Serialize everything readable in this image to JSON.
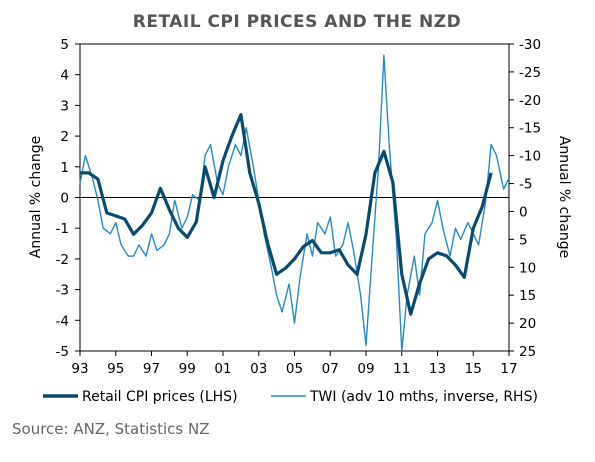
{
  "chart_data": {
    "type": "line",
    "title": "RETAIL CPI PRICES AND THE NZD",
    "y_left_label": "Annual % change",
    "y_right_label": "Annual % change",
    "y_left_range": [
      -5,
      5
    ],
    "y_left_ticks": [
      "5",
      "4",
      "3",
      "2",
      "1",
      "0",
      "-1",
      "-2",
      "-3",
      "-4",
      "-5"
    ],
    "y_right_range": [
      25,
      -30
    ],
    "y_right_ticks": [
      "-30",
      "-25",
      "-20",
      "-15",
      "-10",
      "-5",
      "0",
      "5",
      "10",
      "15",
      "20",
      "25"
    ],
    "x_range": [
      1993,
      2017
    ],
    "x_ticks": [
      "93",
      "95",
      "97",
      "99",
      "01",
      "03",
      "05",
      "07",
      "09",
      "11",
      "13",
      "15",
      "17"
    ],
    "zero_line": true,
    "series": [
      {
        "name": "Retail CPI prices (LHS)",
        "axis": "left",
        "color": "#0b4a6f",
        "points": [
          [
            1993.0,
            0.8
          ],
          [
            1993.5,
            0.8
          ],
          [
            1994.0,
            0.6
          ],
          [
            1994.5,
            -0.5
          ],
          [
            1995.0,
            -0.6
          ],
          [
            1995.5,
            -0.7
          ],
          [
            1996.0,
            -1.2
          ],
          [
            1996.5,
            -0.9
          ],
          [
            1997.0,
            -0.5
          ],
          [
            1997.5,
            0.3
          ],
          [
            1998.0,
            -0.4
          ],
          [
            1998.5,
            -1.0
          ],
          [
            1999.0,
            -1.3
          ],
          [
            1999.5,
            -0.8
          ],
          [
            2000.0,
            1.0
          ],
          [
            2000.5,
            0.0
          ],
          [
            2001.0,
            1.2
          ],
          [
            2001.5,
            2.0
          ],
          [
            2002.0,
            2.7
          ],
          [
            2002.5,
            0.8
          ],
          [
            2003.0,
            -0.2
          ],
          [
            2003.5,
            -1.5
          ],
          [
            2004.0,
            -2.5
          ],
          [
            2004.5,
            -2.3
          ],
          [
            2005.0,
            -2.0
          ],
          [
            2005.5,
            -1.6
          ],
          [
            2006.0,
            -1.4
          ],
          [
            2006.5,
            -1.8
          ],
          [
            2007.0,
            -1.8
          ],
          [
            2007.5,
            -1.7
          ],
          [
            2008.0,
            -2.2
          ],
          [
            2008.5,
            -2.5
          ],
          [
            2009.0,
            -1.2
          ],
          [
            2009.5,
            0.8
          ],
          [
            2010.0,
            1.5
          ],
          [
            2010.5,
            0.5
          ],
          [
            2011.0,
            -2.5
          ],
          [
            2011.5,
            -3.8
          ],
          [
            2012.0,
            -2.8
          ],
          [
            2012.5,
            -2.0
          ],
          [
            2013.0,
            -1.8
          ],
          [
            2013.5,
            -1.9
          ],
          [
            2014.0,
            -2.2
          ],
          [
            2014.5,
            -2.6
          ],
          [
            2015.0,
            -1.0
          ],
          [
            2015.5,
            -0.3
          ],
          [
            2016.0,
            0.8
          ]
        ]
      },
      {
        "name": "TWI (adv 10 mths, inverse, RHS)",
        "axis": "right",
        "color": "#2889c7",
        "points": [
          [
            1993.0,
            -5
          ],
          [
            1993.3,
            -10
          ],
          [
            1993.7,
            -6
          ],
          [
            1994.0,
            -2
          ],
          [
            1994.3,
            3
          ],
          [
            1994.7,
            4
          ],
          [
            1995.0,
            2
          ],
          [
            1995.3,
            6
          ],
          [
            1995.7,
            8
          ],
          [
            1996.0,
            8
          ],
          [
            1996.3,
            6
          ],
          [
            1996.7,
            8
          ],
          [
            1997.0,
            4
          ],
          [
            1997.3,
            7
          ],
          [
            1997.7,
            6
          ],
          [
            1998.0,
            4
          ],
          [
            1998.3,
            -2
          ],
          [
            1998.7,
            3
          ],
          [
            1999.0,
            1
          ],
          [
            1999.3,
            -3
          ],
          [
            1999.7,
            -2
          ],
          [
            2000.0,
            -10
          ],
          [
            2000.3,
            -12
          ],
          [
            2000.7,
            -5
          ],
          [
            2001.0,
            -3
          ],
          [
            2001.3,
            -8
          ],
          [
            2001.7,
            -12
          ],
          [
            2002.0,
            -10
          ],
          [
            2002.3,
            -15
          ],
          [
            2002.7,
            -8
          ],
          [
            2003.0,
            -2
          ],
          [
            2003.3,
            4
          ],
          [
            2003.7,
            10
          ],
          [
            2004.0,
            15
          ],
          [
            2004.3,
            18
          ],
          [
            2004.7,
            13
          ],
          [
            2005.0,
            20
          ],
          [
            2005.3,
            12
          ],
          [
            2005.7,
            4
          ],
          [
            2006.0,
            8
          ],
          [
            2006.3,
            2
          ],
          [
            2006.7,
            4
          ],
          [
            2007.0,
            1
          ],
          [
            2007.3,
            8
          ],
          [
            2007.7,
            6
          ],
          [
            2008.0,
            2
          ],
          [
            2008.3,
            7
          ],
          [
            2008.7,
            15
          ],
          [
            2009.0,
            24
          ],
          [
            2009.3,
            10
          ],
          [
            2009.7,
            -8
          ],
          [
            2010.0,
            -28
          ],
          [
            2010.3,
            -12
          ],
          [
            2010.7,
            5
          ],
          [
            2011.0,
            25
          ],
          [
            2011.3,
            15
          ],
          [
            2011.7,
            8
          ],
          [
            2012.0,
            15
          ],
          [
            2012.3,
            4
          ],
          [
            2012.7,
            2
          ],
          [
            2013.0,
            -2
          ],
          [
            2013.3,
            3
          ],
          [
            2013.7,
            8
          ],
          [
            2014.0,
            3
          ],
          [
            2014.3,
            5
          ],
          [
            2014.7,
            2
          ],
          [
            2015.0,
            4
          ],
          [
            2015.3,
            6
          ],
          [
            2015.7,
            -2
          ],
          [
            2016.0,
            -12
          ],
          [
            2016.3,
            -10
          ],
          [
            2016.7,
            -4
          ],
          [
            2017.0,
            -6
          ]
        ]
      }
    ],
    "legend_position": "bottom"
  },
  "source": "Source: ANZ, Statistics NZ"
}
